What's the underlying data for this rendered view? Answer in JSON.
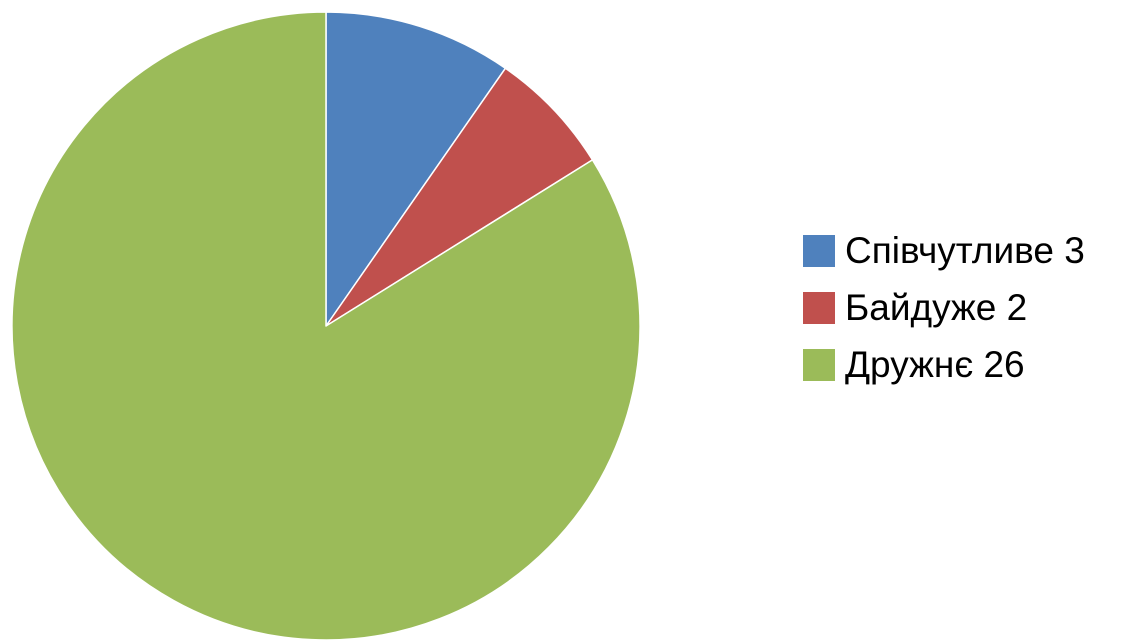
{
  "chart_data": {
    "type": "pie",
    "title": "",
    "legend_position": "right",
    "start_angle": "12-o'clock",
    "direction": "clockwise",
    "slices": [
      {
        "label": "Співчутливе 3",
        "category": "Співчутливе",
        "value": 3,
        "color": "#4F81BD"
      },
      {
        "label": "Байдуже 2",
        "category": "Байдуже",
        "value": 2,
        "color": "#C0504D"
      },
      {
        "label": "Дружнє 26",
        "category": "Дружнє",
        "value": 26,
        "color": "#9BBB59"
      }
    ]
  }
}
